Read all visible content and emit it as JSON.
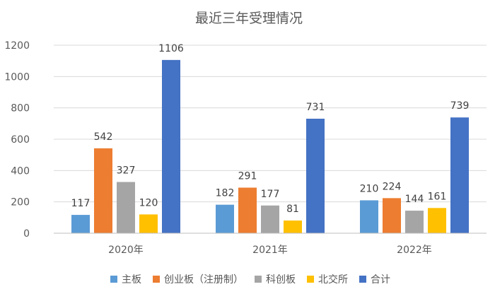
{
  "chart_data": {
    "type": "bar",
    "title": "最近三年受理情况",
    "categories": [
      "2020年",
      "2021年",
      "2022年"
    ],
    "series": [
      {
        "name": "主板",
        "color": "#5B9BD5",
        "values": [
          117,
          182,
          210
        ]
      },
      {
        "name": "创业板（注册制）",
        "color": "#ED7D31",
        "values": [
          542,
          291,
          224
        ]
      },
      {
        "name": "科创板",
        "color": "#A5A5A5",
        "values": [
          327,
          177,
          144
        ]
      },
      {
        "name": "北交所",
        "color": "#FFC000",
        "values": [
          120,
          81,
          161
        ]
      },
      {
        "name": "合计",
        "color": "#4472C4",
        "values": [
          1106,
          731,
          739
        ]
      }
    ],
    "yticks": [
      "0",
      "200",
      "400",
      "600",
      "800",
      "1000",
      "1200"
    ],
    "ylim": [
      0,
      1200
    ],
    "grid": true,
    "legend_position": "bottom"
  }
}
